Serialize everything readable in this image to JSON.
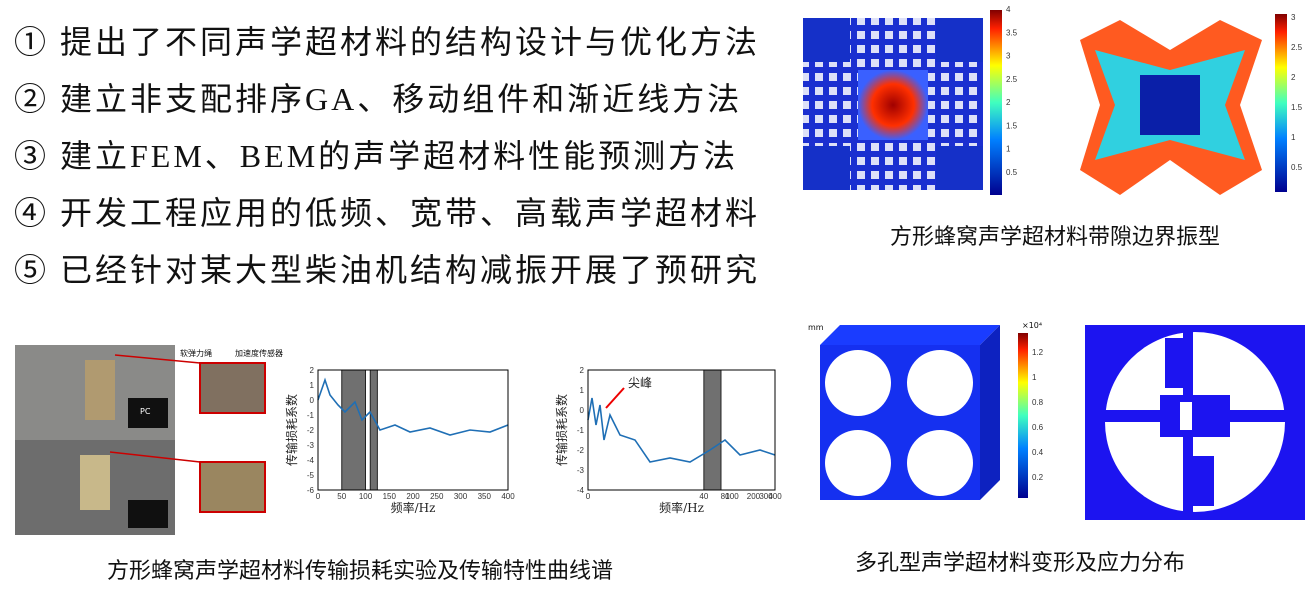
{
  "list": [
    "① 提出了不同声学超材料的结构设计与优化方法",
    "② 建立非支配排序GA、移动组件和渐近线方法",
    "③ 建立FEM、BEM的声学超材料性能预测方法",
    "④ 开发工程应用的低频、宽带、高载声学超材料",
    "⑤ 已经针对某大型柴油机结构减振开展了预研究"
  ],
  "figures": [
    {
      "caption": "方形蜂窝声学超材料带隙边界振型",
      "colorbars": [
        {
          "ticks": [
            "4",
            "3.5",
            "3",
            "2.5",
            "2",
            "1.5",
            "1",
            "0.5"
          ]
        },
        {
          "ticks": [
            "3",
            "2.5",
            "2",
            "1.5",
            "1",
            "0.5"
          ]
        }
      ]
    },
    {
      "caption": "方形蜂窝声学超材料传输损耗实验及传输特性曲线谱",
      "photo_labels": [
        "软弹力绳",
        "加速度传感器",
        "PC"
      ],
      "charts": [
        {
          "ylabel": "传输损耗系数",
          "xlabel": "频率/Hz",
          "yticks": [
            2,
            1,
            0,
            -1,
            -2,
            -3,
            -4,
            -5,
            -6
          ],
          "xticks": [
            0,
            50,
            100,
            150,
            200,
            250,
            300,
            350,
            400
          ]
        },
        {
          "ylabel": "传输损耗系数",
          "xlabel": "频率/Hz",
          "annotation": "尖峰",
          "yticks": [
            2,
            1,
            0,
            -1,
            -2,
            -3,
            -4
          ],
          "xticks": [
            0,
            20,
            40,
            60,
            80,
            100,
            200,
            300,
            400
          ]
        }
      ]
    },
    {
      "caption": "多孔型声学超材料变形及应力分布",
      "colorbar": {
        "unit": "×10⁴",
        "ticks": [
          "1.2",
          "1",
          "0.8",
          "0.6",
          "0.4",
          "0.2"
        ]
      },
      "axis_label": "mm"
    }
  ]
}
